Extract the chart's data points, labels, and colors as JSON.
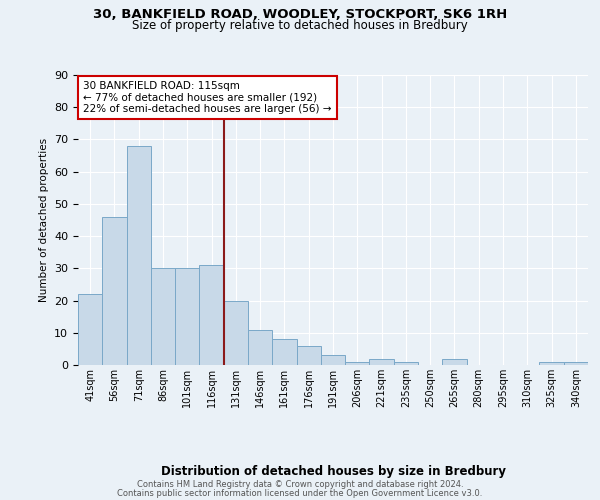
{
  "title": "30, BANKFIELD ROAD, WOODLEY, STOCKPORT, SK6 1RH",
  "subtitle": "Size of property relative to detached houses in Bredbury",
  "xlabel": "Distribution of detached houses by size in Bredbury",
  "ylabel": "Number of detached properties",
  "footnote1": "Contains HM Land Registry data © Crown copyright and database right 2024.",
  "footnote2": "Contains public sector information licensed under the Open Government Licence v3.0.",
  "annotation_line1": "30 BANKFIELD ROAD: 115sqm",
  "annotation_line2": "← 77% of detached houses are smaller (192)",
  "annotation_line3": "22% of semi-detached houses are larger (56) →",
  "bin_labels": [
    "41sqm",
    "56sqm",
    "71sqm",
    "86sqm",
    "101sqm",
    "116sqm",
    "131sqm",
    "146sqm",
    "161sqm",
    "176sqm",
    "191sqm",
    "206sqm",
    "221sqm",
    "235sqm",
    "250sqm",
    "265sqm",
    "280sqm",
    "295sqm",
    "310sqm",
    "325sqm",
    "340sqm"
  ],
  "bar_values": [
    22,
    46,
    68,
    30,
    30,
    31,
    20,
    11,
    8,
    6,
    3,
    1,
    2,
    1,
    0,
    2,
    0,
    0,
    0,
    1,
    1
  ],
  "bar_color": "#c8d9e8",
  "bar_edge_color": "#7aa8c8",
  "vline_color": "#8b1a1a",
  "ylim": [
    0,
    90
  ],
  "yticks": [
    0,
    10,
    20,
    30,
    40,
    50,
    60,
    70,
    80,
    90
  ],
  "bg_color": "#eaf1f7",
  "plot_bg_color": "#eaf1f7",
  "annotation_box_color": "#ffffff",
  "annotation_box_edge": "#cc0000",
  "grid_color": "#ffffff"
}
